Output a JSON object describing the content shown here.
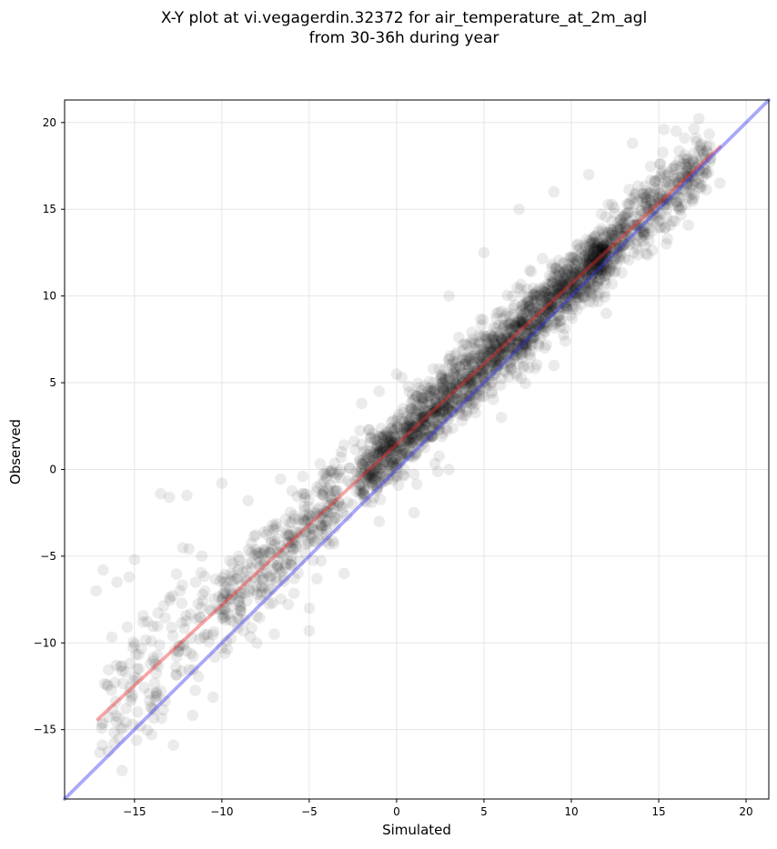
{
  "chart_data": {
    "type": "scatter",
    "title_line1": "X-Y plot at vi.vegagerdin.32372 for air_temperature_at_2m_agl",
    "title_line2": "from 30-36h during year",
    "xlabel": "Simulated",
    "ylabel": "Observed",
    "xlim": [
      -19,
      21.3
    ],
    "ylim": [
      -19,
      21.3
    ],
    "xticks": [
      -15,
      -10,
      -5,
      0,
      5,
      10,
      15,
      20
    ],
    "yticks": [
      -15,
      -10,
      -5,
      0,
      5,
      10,
      15,
      20
    ],
    "grid": true,
    "marker_color": "#000000",
    "marker_alpha": 0.08,
    "series": [
      {
        "type": "line",
        "color": "#ee2a2a",
        "x": [
          -17.1,
          18.5
        ],
        "y": [
          -14.4,
          18.6
        ]
      },
      {
        "type": "line",
        "color": "#3333ee",
        "x": [
          -19,
          21.3
        ],
        "y": [
          -19,
          21.3
        ]
      }
    ],
    "point_cloud": {
      "description_points": [
        [
          -17.2,
          -7.0
        ],
        [
          -16.8,
          -5.8
        ],
        [
          -16.0,
          -6.5
        ],
        [
          -15.3,
          -6.2
        ],
        [
          -15.0,
          -5.2
        ],
        [
          -14.5,
          -8.8
        ],
        [
          -13.5,
          -1.4
        ],
        [
          -13.0,
          -1.6
        ],
        [
          -12.5,
          -10.5
        ],
        [
          -12.0,
          -1.5
        ],
        [
          -11.5,
          -6.5
        ],
        [
          -10.0,
          -0.8
        ],
        [
          -9.5,
          -6.4
        ],
        [
          -8.5,
          -1.8
        ],
        [
          -7.0,
          -9.5
        ],
        [
          -5.0,
          -9.3
        ],
        [
          -3.5,
          -0.5
        ],
        [
          -2.0,
          3.8
        ],
        [
          -1.0,
          4.5
        ],
        [
          0.0,
          5.5
        ],
        [
          3.0,
          10.0
        ],
        [
          5.0,
          12.5
        ],
        [
          7.0,
          15.0
        ],
        [
          9.0,
          16.0
        ],
        [
          11.0,
          17.0
        ],
        [
          13.5,
          18.8
        ],
        [
          15.3,
          19.6
        ],
        [
          16.0,
          19.5
        ],
        [
          18.5,
          16.5
        ],
        [
          15.5,
          13.3
        ],
        [
          12.0,
          9.0
        ],
        [
          9.0,
          6.0
        ],
        [
          6.0,
          3.0
        ],
        [
          3.0,
          0.0
        ],
        [
          1.0,
          -2.5
        ],
        [
          -1.0,
          -3.0
        ],
        [
          -3.0,
          -6.0
        ],
        [
          -5.0,
          -8.0
        ],
        [
          -8.0,
          -10.0
        ],
        [
          -10.0,
          -10.3
        ]
      ]
    }
  }
}
